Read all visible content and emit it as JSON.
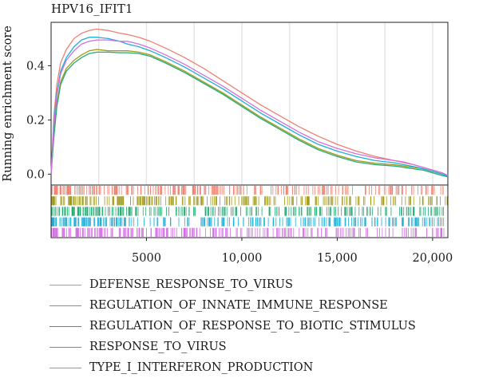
{
  "chart_data": {
    "type": "line",
    "title": "HPV16_IFIT1",
    "xlabel": "",
    "ylabel": "Running enrichment score",
    "xlim": [
      0,
      20800
    ],
    "ylim": [
      -0.04,
      0.56
    ],
    "x_ticks": [
      5000,
      10000,
      15000,
      20000
    ],
    "x_tick_labels": [
      "5000",
      "10,000",
      "15,000",
      "20,000"
    ],
    "y_ticks": [
      0.0,
      0.2,
      0.4
    ],
    "y_tick_labels": [
      "0.0",
      "0.2",
      "0.4"
    ],
    "grid": "vertical",
    "legend_position": "bottom",
    "series": [
      {
        "name": "DEFENSE_RESPONSE_TO_VIRUS",
        "color": "#F08070",
        "x": [
          0,
          150,
          300,
          500,
          800,
          1200,
          1600,
          2000,
          2400,
          3000,
          3600,
          4000,
          4600,
          5200,
          6000,
          7000,
          8000,
          9000,
          10000,
          11000,
          12000,
          13000,
          14000,
          15000,
          16000,
          17000,
          18000,
          18500,
          19000,
          19500,
          20000,
          20500,
          20800
        ],
        "values": [
          0.0,
          0.22,
          0.33,
          0.41,
          0.46,
          0.5,
          0.52,
          0.53,
          0.535,
          0.53,
          0.52,
          0.515,
          0.505,
          0.49,
          0.465,
          0.43,
          0.39,
          0.345,
          0.3,
          0.255,
          0.215,
          0.175,
          0.14,
          0.11,
          0.085,
          0.065,
          0.05,
          0.042,
          0.035,
          0.025,
          0.015,
          0.005,
          -0.005
        ]
      },
      {
        "name": "REGULATION_OF_INNATE_IMMUNE_RESPONSE",
        "color": "#A09A1A",
        "x": [
          0,
          150,
          300,
          500,
          800,
          1200,
          1600,
          2000,
          2400,
          3000,
          3600,
          4000,
          4600,
          5200,
          6000,
          7000,
          8000,
          9000,
          10000,
          11000,
          12000,
          13000,
          14000,
          15000,
          16000,
          17000,
          18000,
          18500,
          19000,
          19500,
          20000,
          20500,
          20800
        ],
        "values": [
          0.0,
          0.15,
          0.26,
          0.34,
          0.39,
          0.42,
          0.44,
          0.455,
          0.46,
          0.455,
          0.455,
          0.455,
          0.45,
          0.44,
          0.415,
          0.38,
          0.34,
          0.3,
          0.255,
          0.21,
          0.17,
          0.13,
          0.095,
          0.07,
          0.05,
          0.04,
          0.035,
          0.03,
          0.025,
          0.02,
          0.01,
          0.0,
          -0.005
        ]
      },
      {
        "name": "REGULATION_OF_RESPONSE_TO_BIOTIC_STIMULUS",
        "color": "#22AA72",
        "x": [
          0,
          150,
          300,
          500,
          800,
          1200,
          1600,
          2000,
          2400,
          3000,
          3600,
          4000,
          4600,
          5200,
          6000,
          7000,
          8000,
          9000,
          10000,
          11000,
          12000,
          13000,
          14000,
          15000,
          16000,
          17000,
          18000,
          18500,
          19000,
          19500,
          20000,
          20500,
          20800
        ],
        "values": [
          0.0,
          0.14,
          0.25,
          0.33,
          0.38,
          0.41,
          0.43,
          0.445,
          0.45,
          0.45,
          0.448,
          0.448,
          0.445,
          0.435,
          0.41,
          0.375,
          0.335,
          0.295,
          0.25,
          0.205,
          0.165,
          0.125,
          0.09,
          0.065,
          0.045,
          0.035,
          0.03,
          0.025,
          0.02,
          0.015,
          0.005,
          -0.005,
          -0.01
        ]
      },
      {
        "name": "RESPONSE_TO_VIRUS",
        "color": "#1EAED8",
        "x": [
          0,
          150,
          300,
          500,
          800,
          1200,
          1600,
          2000,
          2400,
          3000,
          3600,
          4000,
          4600,
          5200,
          6000,
          7000,
          8000,
          9000,
          10000,
          11000,
          12000,
          13000,
          14000,
          15000,
          16000,
          17000,
          18000,
          18500,
          19000,
          19500,
          20000,
          20500,
          20800
        ],
        "values": [
          0.0,
          0.2,
          0.3,
          0.38,
          0.43,
          0.47,
          0.495,
          0.505,
          0.505,
          0.5,
          0.49,
          0.48,
          0.47,
          0.455,
          0.43,
          0.395,
          0.355,
          0.315,
          0.27,
          0.225,
          0.185,
          0.145,
          0.11,
          0.085,
          0.065,
          0.05,
          0.042,
          0.035,
          0.028,
          0.02,
          0.01,
          0.0,
          -0.008
        ]
      },
      {
        "name": "TYPE_I_INTERFERON_PRODUCTION",
        "color": "#D070E0",
        "x": [
          0,
          150,
          300,
          500,
          800,
          1200,
          1600,
          2000,
          2400,
          3000,
          3600,
          4000,
          4600,
          5200,
          6000,
          7000,
          8000,
          9000,
          10000,
          11000,
          12000,
          13000,
          14000,
          15000,
          16000,
          17000,
          18000,
          18500,
          19000,
          19500,
          20000,
          20500,
          20800
        ],
        "values": [
          0.0,
          0.18,
          0.29,
          0.37,
          0.42,
          0.455,
          0.48,
          0.49,
          0.495,
          0.495,
          0.49,
          0.49,
          0.48,
          0.465,
          0.44,
          0.405,
          0.365,
          0.325,
          0.28,
          0.235,
          0.195,
          0.155,
          0.12,
          0.095,
          0.075,
          0.06,
          0.05,
          0.045,
          0.035,
          0.025,
          0.015,
          0.005,
          -0.005
        ]
      }
    ]
  }
}
